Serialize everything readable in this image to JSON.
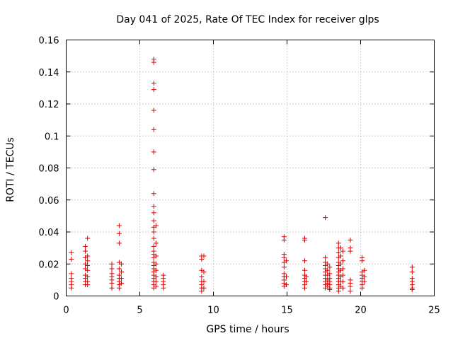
{
  "chart_data": {
    "type": "scatter",
    "title": "Day 041 of 2025, Rate Of TEC Index for receiver glps",
    "xlabel": "GPS time / hours",
    "ylabel": "ROTI / TECUs",
    "xlim": [
      0,
      25
    ],
    "ylim": [
      0,
      0.16
    ],
    "x_ticks": [
      0,
      5,
      10,
      15,
      20,
      25
    ],
    "x_tick_labels": [
      "0",
      "5",
      "10",
      "15",
      "20",
      "25"
    ],
    "y_ticks": [
      0,
      0.02,
      0.04,
      0.06,
      0.08,
      0.1,
      0.12,
      0.14,
      0.16
    ],
    "y_tick_labels": [
      "0",
      "0.02",
      "0.04",
      "0.06",
      "0.08",
      "0.1",
      "0.12",
      "0.14",
      "0.16"
    ],
    "grid": true,
    "marker": "+",
    "color": "#dd0000",
    "series": [
      {
        "name": "ROTI",
        "points": [
          [
            0.35,
            0.027
          ],
          [
            0.35,
            0.023
          ],
          [
            0.35,
            0.014
          ],
          [
            0.35,
            0.011
          ],
          [
            0.35,
            0.009
          ],
          [
            0.35,
            0.007
          ],
          [
            0.35,
            0.005
          ],
          [
            1.3,
            0.031
          ],
          [
            1.3,
            0.028
          ],
          [
            1.3,
            0.024
          ],
          [
            1.3,
            0.02
          ],
          [
            1.3,
            0.017
          ],
          [
            1.3,
            0.013
          ],
          [
            1.3,
            0.011
          ],
          [
            1.3,
            0.009
          ],
          [
            1.3,
            0.007
          ],
          [
            1.45,
            0.036
          ],
          [
            1.45,
            0.025
          ],
          [
            1.45,
            0.022
          ],
          [
            1.45,
            0.019
          ],
          [
            1.45,
            0.016
          ],
          [
            1.45,
            0.012
          ],
          [
            1.45,
            0.009
          ],
          [
            1.45,
            0.007
          ],
          [
            3.1,
            0.02
          ],
          [
            3.1,
            0.017
          ],
          [
            3.1,
            0.014
          ],
          [
            3.1,
            0.012
          ],
          [
            3.1,
            0.01
          ],
          [
            3.1,
            0.008
          ],
          [
            3.1,
            0.005
          ],
          [
            3.6,
            0.044
          ],
          [
            3.6,
            0.039
          ],
          [
            3.6,
            0.033
          ],
          [
            3.6,
            0.021
          ],
          [
            3.6,
            0.017
          ],
          [
            3.6,
            0.013
          ],
          [
            3.6,
            0.011
          ],
          [
            3.6,
            0.009
          ],
          [
            3.6,
            0.007
          ],
          [
            3.6,
            0.005
          ],
          [
            3.75,
            0.02
          ],
          [
            3.75,
            0.015
          ],
          [
            3.75,
            0.011
          ],
          [
            3.75,
            0.008
          ],
          [
            5.95,
            0.148
          ],
          [
            5.95,
            0.146
          ],
          [
            5.95,
            0.133
          ],
          [
            5.95,
            0.129
          ],
          [
            5.95,
            0.116
          ],
          [
            5.95,
            0.104
          ],
          [
            5.95,
            0.09
          ],
          [
            5.95,
            0.079
          ],
          [
            5.95,
            0.064
          ],
          [
            5.95,
            0.056
          ],
          [
            5.95,
            0.052
          ],
          [
            5.95,
            0.047
          ],
          [
            5.95,
            0.043
          ],
          [
            5.95,
            0.04
          ],
          [
            5.95,
            0.036
          ],
          [
            5.95,
            0.031
          ],
          [
            5.95,
            0.028
          ],
          [
            5.95,
            0.026
          ],
          [
            5.95,
            0.024
          ],
          [
            5.95,
            0.021
          ],
          [
            5.95,
            0.019
          ],
          [
            5.95,
            0.017
          ],
          [
            5.95,
            0.015
          ],
          [
            5.95,
            0.013
          ],
          [
            5.95,
            0.011
          ],
          [
            5.95,
            0.009
          ],
          [
            5.95,
            0.007
          ],
          [
            5.95,
            0.005
          ],
          [
            6.1,
            0.044
          ],
          [
            6.1,
            0.033
          ],
          [
            6.1,
            0.025
          ],
          [
            6.1,
            0.02
          ],
          [
            6.1,
            0.016
          ],
          [
            6.1,
            0.012
          ],
          [
            6.1,
            0.009
          ],
          [
            6.1,
            0.006
          ],
          [
            6.6,
            0.013
          ],
          [
            6.6,
            0.011
          ],
          [
            6.6,
            0.009
          ],
          [
            6.6,
            0.007
          ],
          [
            6.6,
            0.005
          ],
          [
            9.2,
            0.025
          ],
          [
            9.2,
            0.023
          ],
          [
            9.2,
            0.016
          ],
          [
            9.2,
            0.012
          ],
          [
            9.2,
            0.009
          ],
          [
            9.2,
            0.007
          ],
          [
            9.2,
            0.005
          ],
          [
            9.2,
            0.003
          ],
          [
            9.35,
            0.025
          ],
          [
            9.35,
            0.015
          ],
          [
            9.35,
            0.009
          ],
          [
            9.35,
            0.005
          ],
          [
            14.8,
            0.037
          ],
          [
            14.8,
            0.035
          ],
          [
            14.8,
            0.026
          ],
          [
            14.8,
            0.024
          ],
          [
            14.8,
            0.021
          ],
          [
            14.8,
            0.018
          ],
          [
            14.8,
            0.014
          ],
          [
            14.8,
            0.012
          ],
          [
            14.8,
            0.01
          ],
          [
            14.8,
            0.008
          ],
          [
            14.8,
            0.006
          ],
          [
            14.95,
            0.022
          ],
          [
            14.95,
            0.012
          ],
          [
            14.95,
            0.007
          ],
          [
            16.2,
            0.036
          ],
          [
            16.2,
            0.035
          ],
          [
            16.2,
            0.022
          ],
          [
            16.2,
            0.016
          ],
          [
            16.2,
            0.013
          ],
          [
            16.2,
            0.011
          ],
          [
            16.2,
            0.009
          ],
          [
            16.2,
            0.007
          ],
          [
            16.2,
            0.005
          ],
          [
            16.3,
            0.012
          ],
          [
            16.3,
            0.009
          ],
          [
            17.6,
            0.049
          ],
          [
            17.6,
            0.024
          ],
          [
            17.6,
            0.021
          ],
          [
            17.6,
            0.019
          ],
          [
            17.6,
            0.017
          ],
          [
            17.6,
            0.015
          ],
          [
            17.6,
            0.013
          ],
          [
            17.6,
            0.011
          ],
          [
            17.6,
            0.009
          ],
          [
            17.6,
            0.007
          ],
          [
            17.6,
            0.005
          ],
          [
            17.75,
            0.02
          ],
          [
            17.75,
            0.016
          ],
          [
            17.75,
            0.013
          ],
          [
            17.75,
            0.01
          ],
          [
            17.75,
            0.008
          ],
          [
            17.75,
            0.006
          ],
          [
            17.9,
            0.018
          ],
          [
            17.9,
            0.014
          ],
          [
            17.9,
            0.011
          ],
          [
            17.9,
            0.009
          ],
          [
            17.9,
            0.007
          ],
          [
            17.9,
            0.005
          ],
          [
            17.9,
            0.004
          ],
          [
            18.5,
            0.033
          ],
          [
            18.5,
            0.03
          ],
          [
            18.5,
            0.027
          ],
          [
            18.5,
            0.024
          ],
          [
            18.5,
            0.021
          ],
          [
            18.5,
            0.019
          ],
          [
            18.5,
            0.017
          ],
          [
            18.5,
            0.015
          ],
          [
            18.5,
            0.013
          ],
          [
            18.5,
            0.011
          ],
          [
            18.5,
            0.009
          ],
          [
            18.5,
            0.007
          ],
          [
            18.5,
            0.005
          ],
          [
            18.5,
            0.003
          ],
          [
            18.65,
            0.03
          ],
          [
            18.65,
            0.025
          ],
          [
            18.65,
            0.02
          ],
          [
            18.65,
            0.016
          ],
          [
            18.65,
            0.012
          ],
          [
            18.65,
            0.009
          ],
          [
            18.65,
            0.006
          ],
          [
            18.8,
            0.028
          ],
          [
            18.8,
            0.022
          ],
          [
            18.8,
            0.017
          ],
          [
            18.8,
            0.013
          ],
          [
            18.8,
            0.009
          ],
          [
            18.8,
            0.005
          ],
          [
            19.3,
            0.035
          ],
          [
            19.3,
            0.03
          ],
          [
            19.3,
            0.028
          ],
          [
            19.3,
            0.01
          ],
          [
            19.3,
            0.008
          ],
          [
            19.3,
            0.006
          ],
          [
            19.3,
            0.003
          ],
          [
            20.1,
            0.024
          ],
          [
            20.1,
            0.022
          ],
          [
            20.1,
            0.015
          ],
          [
            20.1,
            0.013
          ],
          [
            20.1,
            0.011
          ],
          [
            20.1,
            0.009
          ],
          [
            20.1,
            0.007
          ],
          [
            20.1,
            0.005
          ],
          [
            20.25,
            0.016
          ],
          [
            20.25,
            0.012
          ],
          [
            20.25,
            0.009
          ],
          [
            23.5,
            0.018
          ],
          [
            23.5,
            0.015
          ],
          [
            23.5,
            0.011
          ],
          [
            23.5,
            0.009
          ],
          [
            23.5,
            0.007
          ],
          [
            23.5,
            0.005
          ],
          [
            23.5,
            0.004
          ]
        ]
      }
    ]
  }
}
